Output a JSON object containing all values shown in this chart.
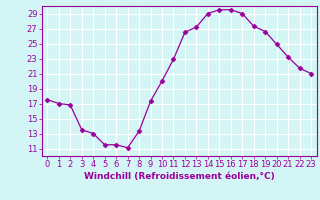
{
  "x": [
    0,
    1,
    2,
    3,
    4,
    5,
    6,
    7,
    8,
    9,
    10,
    11,
    12,
    13,
    14,
    15,
    16,
    17,
    18,
    19,
    20,
    21,
    22,
    23
  ],
  "y": [
    17.5,
    17.0,
    16.8,
    13.5,
    13.0,
    11.5,
    11.5,
    11.1,
    13.3,
    17.3,
    20.0,
    22.9,
    26.5,
    27.2,
    29.0,
    29.5,
    29.5,
    29.0,
    27.3,
    26.6,
    24.9,
    23.2,
    21.7,
    21.0
  ],
  "line_color": "#9b009b",
  "marker": "D",
  "marker_size": 2.5,
  "xlabel": "Windchill (Refroidissement éolien,°C)",
  "xlim": [
    -0.5,
    23.5
  ],
  "ylim": [
    10.0,
    30.0
  ],
  "yticks": [
    11,
    13,
    15,
    17,
    19,
    21,
    23,
    25,
    27,
    29
  ],
  "xticks": [
    0,
    1,
    2,
    3,
    4,
    5,
    6,
    7,
    8,
    9,
    10,
    11,
    12,
    13,
    14,
    15,
    16,
    17,
    18,
    19,
    20,
    21,
    22,
    23
  ],
  "bg_color": "#d4f5f5",
  "grid_color": "#ffffff",
  "spine_color": "#9b009b",
  "tick_color": "#9b009b",
  "label_color": "#9b009b",
  "label_fontsize": 6.5,
  "tick_fontsize": 6.0
}
